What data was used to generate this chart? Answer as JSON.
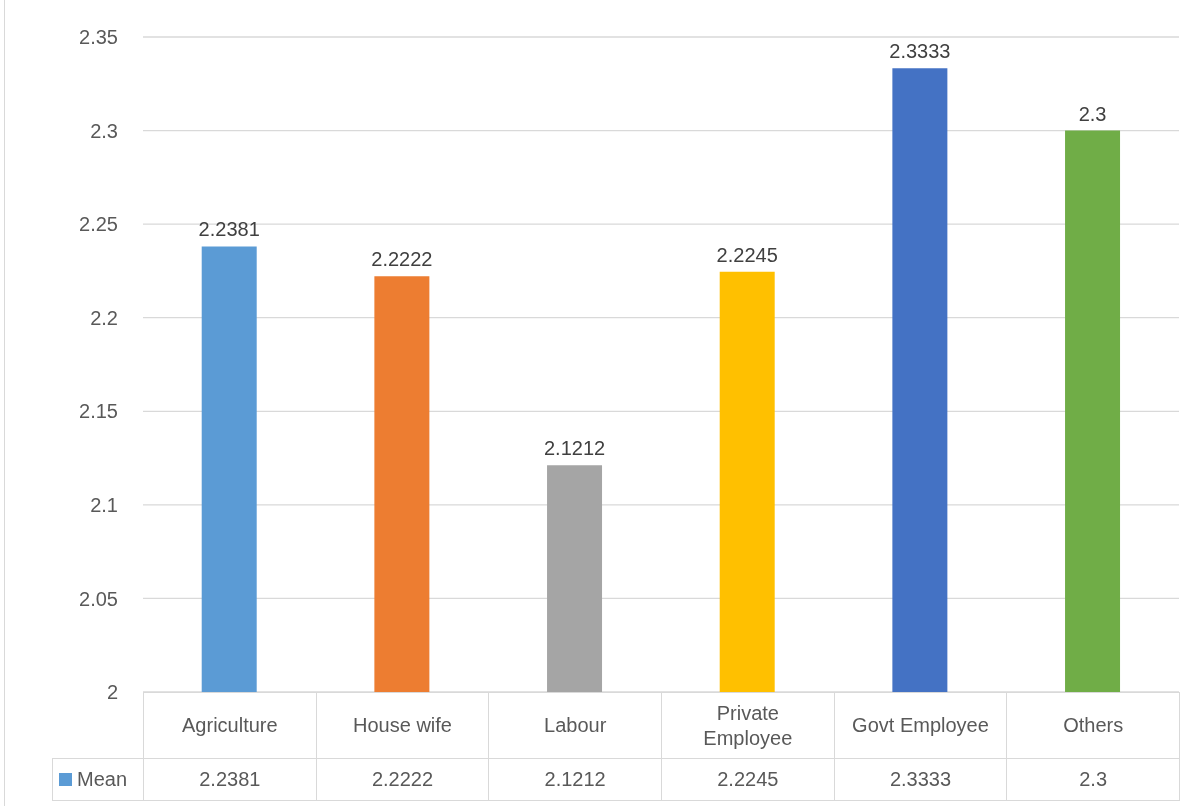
{
  "chart_data": {
    "type": "bar",
    "categories": [
      "Agriculture",
      "House wife",
      "Labour",
      "Private Employee",
      "Govt Employee",
      "Others"
    ],
    "series": [
      {
        "name": "Mean",
        "values": [
          2.2381,
          2.2222,
          2.1212,
          2.2245,
          2.3333,
          2.3
        ],
        "colors": [
          "#5b9bd5",
          "#ed7d31",
          "#a5a5a5",
          "#ffc000",
          "#4472c4",
          "#70ad47"
        ]
      }
    ],
    "ylim": [
      2,
      2.35
    ],
    "yticks": [
      2,
      2.05,
      2.1,
      2.15,
      2.2,
      2.25,
      2.3,
      2.35
    ],
    "grid": "y",
    "legend": "bottom",
    "data_labels": true,
    "annotations": [
      "2.2381",
      "2.2222",
      "2.1212",
      "2.2245",
      "2.3333",
      "2.3"
    ]
  }
}
